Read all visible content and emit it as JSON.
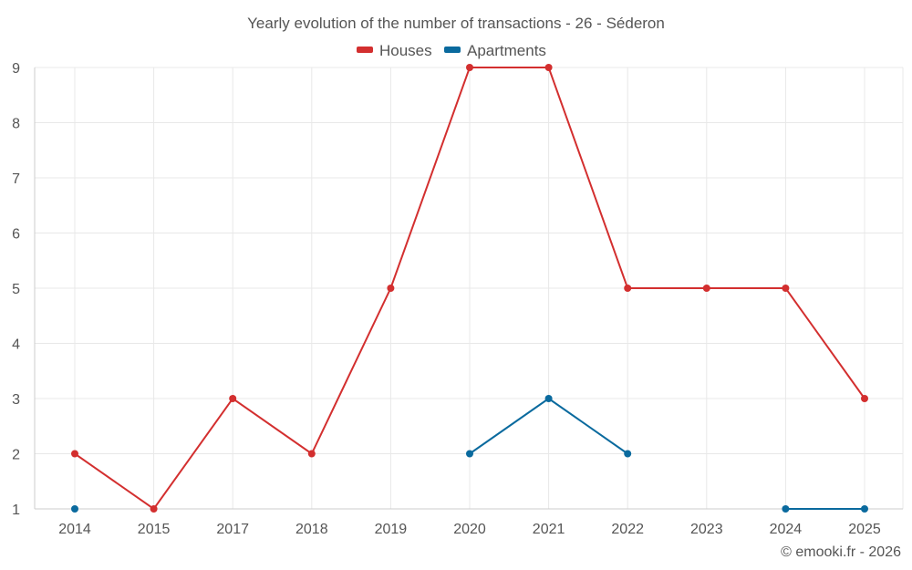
{
  "chart_data": {
    "type": "line",
    "title": "Yearly evolution of the number of transactions - 26 - Séderon",
    "categories": [
      "2014",
      "2015",
      "2017",
      "2018",
      "2019",
      "2020",
      "2021",
      "2022",
      "2023",
      "2024",
      "2025"
    ],
    "series": [
      {
        "name": "Houses",
        "color": "#d32f2f",
        "values": [
          2,
          1,
          3,
          2,
          5,
          9,
          9,
          5,
          5,
          5,
          3
        ]
      },
      {
        "name": "Apartments",
        "color": "#0a6a9e",
        "values": [
          1,
          null,
          null,
          null,
          null,
          2,
          3,
          2,
          null,
          1,
          1
        ]
      }
    ],
    "y_ticks": [
      "1",
      "2",
      "3",
      "4",
      "5",
      "6",
      "7",
      "8",
      "9"
    ],
    "ylim": [
      1,
      9
    ],
    "grid": true,
    "legend_position": "top-center",
    "xlabel": "",
    "ylabel": ""
  },
  "credit": "© emooki.fr - 2026"
}
